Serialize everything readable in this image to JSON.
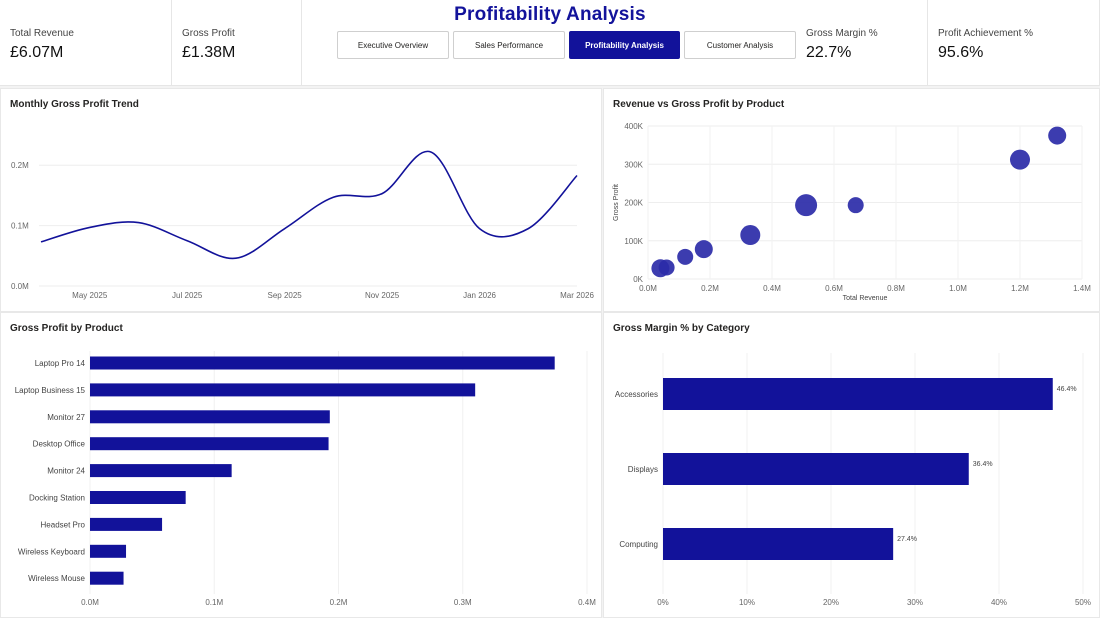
{
  "page_title": "Profitability Analysis",
  "kpis": [
    {
      "label": "Total Revenue",
      "value": "£6.07M"
    },
    {
      "label": "Gross Profit",
      "value": "£1.38M"
    },
    {
      "label": "Gross Margin %",
      "value": "22.7%"
    },
    {
      "label": "Profit Achievement %",
      "value": "95.6%"
    }
  ],
  "nav": [
    {
      "label": "Executive Overview",
      "active": false
    },
    {
      "label": "Sales Performance",
      "active": false
    },
    {
      "label": "Profitability Analysis",
      "active": true
    },
    {
      "label": "Customer Analysis",
      "active": false
    }
  ],
  "colors": {
    "accent": "#12129a",
    "bubble": "#2b2ba8"
  },
  "chart_data": [
    {
      "type": "line",
      "title": "Monthly Gross Profit Trend",
      "x": [
        "Apr 2025",
        "May 2025",
        "Jun 2025",
        "Jul 2025",
        "Aug 2025",
        "Sep 2025",
        "Oct 2025",
        "Nov 2025",
        "Dec 2025",
        "Jan 2026",
        "Feb 2026",
        "Mar 2026"
      ],
      "x_tick_labels": [
        "May 2025",
        "Jul 2025",
        "Sep 2025",
        "Nov 2025",
        "Jan 2026",
        "Mar 2026"
      ],
      "values": [
        0.073,
        0.097,
        0.105,
        0.075,
        0.046,
        0.095,
        0.147,
        0.153,
        0.222,
        0.095,
        0.095,
        0.183
      ],
      "y_ticks": [
        "0.0M",
        "0.1M",
        "0.2M"
      ],
      "ylim": [
        0,
        0.26
      ],
      "grid": true
    },
    {
      "type": "scatter",
      "title": "Revenue vs Gross Profit by Product",
      "xlabel": "Total Revenue",
      "ylabel": "Gross Profit",
      "x_ticks": [
        "0.0M",
        "0.2M",
        "0.4M",
        "0.6M",
        "0.8M",
        "1.0M",
        "1.2M",
        "1.4M"
      ],
      "y_ticks": [
        "0K",
        "100K",
        "200K",
        "300K",
        "400K"
      ],
      "xlim": [
        0,
        1.4
      ],
      "ylim": [
        0,
        400
      ],
      "points": [
        {
          "x": 0.04,
          "y": 28,
          "r": 9
        },
        {
          "x": 0.06,
          "y": 30,
          "r": 8
        },
        {
          "x": 0.12,
          "y": 58,
          "r": 8
        },
        {
          "x": 0.18,
          "y": 78,
          "r": 9
        },
        {
          "x": 0.33,
          "y": 115,
          "r": 10
        },
        {
          "x": 0.51,
          "y": 193,
          "r": 11
        },
        {
          "x": 0.67,
          "y": 193,
          "r": 8
        },
        {
          "x": 1.2,
          "y": 312,
          "r": 10
        },
        {
          "x": 1.32,
          "y": 375,
          "r": 9
        }
      ],
      "grid": true
    },
    {
      "type": "bar",
      "orientation": "horizontal",
      "title": "Gross Profit by Product",
      "categories": [
        "Laptop Pro 14",
        "Laptop Business 15",
        "Monitor 27",
        "Desktop Office",
        "Monitor 24",
        "Docking Station",
        "Headset Pro",
        "Wireless Keyboard",
        "Wireless Mouse"
      ],
      "values": [
        0.374,
        0.31,
        0.193,
        0.192,
        0.114,
        0.077,
        0.058,
        0.029,
        0.027
      ],
      "x_ticks": [
        "0.0M",
        "0.1M",
        "0.2M",
        "0.3M",
        "0.4M"
      ],
      "xlim": [
        0,
        0.4
      ]
    },
    {
      "type": "bar",
      "orientation": "horizontal",
      "title": "Gross Margin % by Category",
      "categories": [
        "Accessories",
        "Displays",
        "Computing"
      ],
      "values": [
        46.4,
        36.4,
        27.4
      ],
      "data_labels": [
        "46.4%",
        "36.4%",
        "27.4%"
      ],
      "x_ticks": [
        "0%",
        "10%",
        "20%",
        "30%",
        "40%",
        "50%"
      ],
      "xlim": [
        0,
        50
      ]
    }
  ]
}
